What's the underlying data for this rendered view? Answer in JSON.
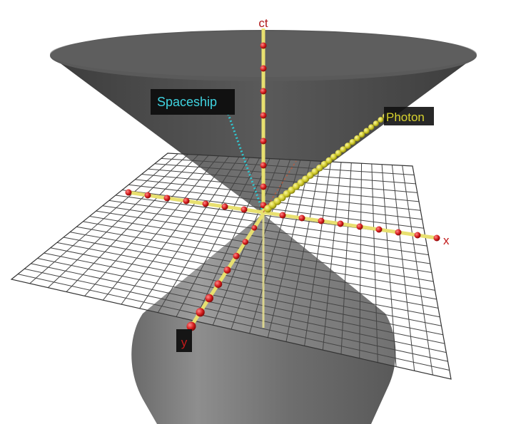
{
  "axes": {
    "time": {
      "label": "ct",
      "color": "#b01818"
    },
    "x": {
      "label": "x",
      "color": "#c21a1a"
    },
    "y": {
      "label": "y",
      "color": "#c21a1a"
    }
  },
  "labels": {
    "spaceship": {
      "text": "Spaceship",
      "color": "#3fd3e0",
      "background": "#111111"
    },
    "photon": {
      "text": "Photon",
      "color": "#d7d22e",
      "background": "#111111"
    }
  },
  "colors": {
    "cone": "#555555",
    "grid_line": "#444444",
    "axis_rod": "#e8e070",
    "axis_marker": "#cc1a1a",
    "photon_worldline": "#cfcc2a",
    "spaceship_worldline": "#2fc8d2"
  },
  "icons": {
    "axis_marker": "red-sphere-icon",
    "photon_bead": "yellow-sphere-icon"
  }
}
